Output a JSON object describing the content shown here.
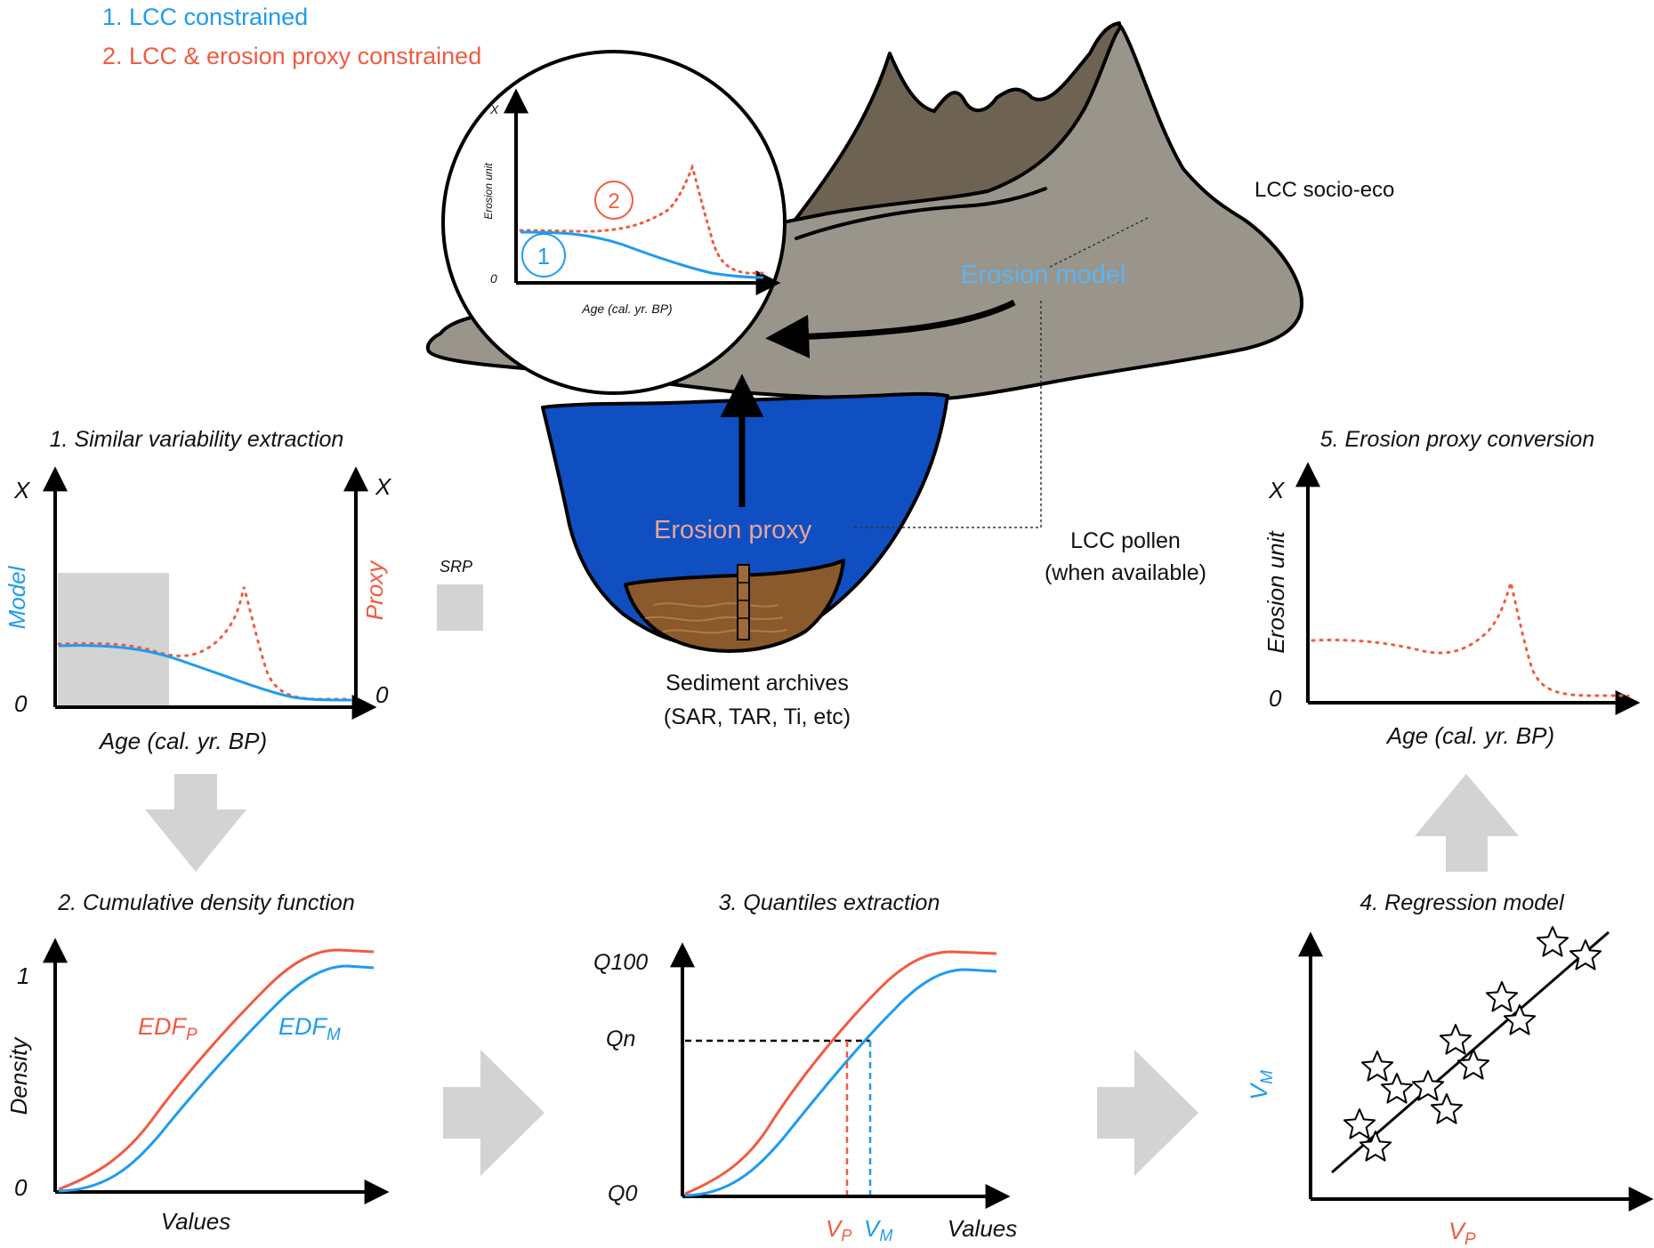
{
  "colors": {
    "blue": "#1e9bf0",
    "red": "#f15a41",
    "lake": "#0f4fc2",
    "mountain_dark": "#6e6253",
    "mountain_light": "#9a958a",
    "sediment": "#8a5a2c",
    "grey_arrow": "#d3d3d3",
    "text": "#111111"
  },
  "legend": {
    "item1": "1.    LCC constrained",
    "item2": "2.    LCC & erosion proxy constrained"
  },
  "landscape": {
    "lcc_socio_eco": "LCC socio-eco",
    "erosion_model": "Erosion model",
    "erosion_proxy": "Erosion proxy",
    "lcc_pollen": "LCC pollen",
    "lcc_pollen_note": "(when available)",
    "sediment_archives": "Sediment archives",
    "sediment_archives_note": "(SAR, TAR, Ti, etc)"
  },
  "inset": {
    "y_top": "X",
    "y_zero": "0",
    "y_label": "Erosion unit",
    "x_label": "Age (cal. yr. BP)",
    "marker1": "1",
    "marker2": "2"
  },
  "panel1": {
    "title": "1. Similar variability extraction",
    "y_left_top": "X",
    "y_right_top": "X",
    "y_left_label": "Model",
    "y_right_label": "Proxy",
    "y_left_zero": "0",
    "y_right_zero": "0",
    "x_label": "Age (cal. yr. BP)",
    "srp_label": "SRP"
  },
  "panel2": {
    "title": "2. Cumulative density function",
    "y_top": "1",
    "y_zero": "0",
    "y_label": "Density",
    "x_label": "Values",
    "edf_p": "EDF",
    "edf_p_sub": "P",
    "edf_m": "EDF",
    "edf_m_sub": "M"
  },
  "panel3": {
    "title": "3. Quantiles extraction",
    "q100": "Q100",
    "qn": "Qn",
    "q0": "Q0",
    "x_label": "Values",
    "vp": "V",
    "vp_sub": "P",
    "vm": "V",
    "vm_sub": "M"
  },
  "panel4": {
    "title": "4. Regression model",
    "y_label": "V",
    "y_label_sub": "M",
    "x_label": "V",
    "x_label_sub": "P"
  },
  "panel5": {
    "title": "5. Erosion proxy conversion",
    "y_top": "X",
    "y_zero": "0",
    "y_label": "Erosion unit",
    "x_label": "Age (cal. yr. BP)"
  }
}
